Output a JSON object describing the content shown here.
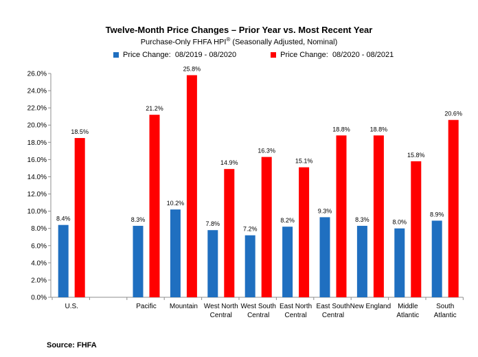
{
  "title": "Twelve-Month Price Changes – Prior Year vs. Most Recent Year",
  "subtitle_main": "Purchase-Only FHFA HPI",
  "subtitle_sup": "®",
  "subtitle_rest": " (Seasonally Adjusted, Nominal)",
  "source": "Source: FHFA",
  "colors": {
    "series1": "#1f6fc0",
    "series2": "#ff0000",
    "axis": "#8c8c8c"
  },
  "chart_data": {
    "type": "bar",
    "title": "Twelve-Month Price Changes – Prior Year vs. Most Recent Year",
    "ylim": [
      0,
      26
    ],
    "ytick_step": 2,
    "ytick_labels": [
      "0.0%",
      "2.0%",
      "4.0%",
      "6.0%",
      "8.0%",
      "10.0%",
      "12.0%",
      "14.0%",
      "16.0%",
      "18.0%",
      "20.0%",
      "22.0%",
      "24.0%",
      "26.0%"
    ],
    "legend_position": "top",
    "grid": false,
    "categories": [
      [
        "U.S."
      ],
      [
        ""
      ],
      [
        "Pacific"
      ],
      [
        "Mountain"
      ],
      [
        "West North",
        "Central"
      ],
      [
        "West South",
        "Central"
      ],
      [
        "East North",
        "Central"
      ],
      [
        "East South",
        "Central"
      ],
      [
        "New England"
      ],
      [
        "Middle",
        "Atlantic"
      ],
      [
        "South",
        "Atlantic"
      ]
    ],
    "series": [
      {
        "name": "Price Change:  08/2019 - 08/2020",
        "values": [
          8.4,
          null,
          8.3,
          10.2,
          7.8,
          7.2,
          8.2,
          9.3,
          8.3,
          8.0,
          8.9
        ],
        "labels": [
          "8.4%",
          "",
          "8.3%",
          "10.2%",
          "7.8%",
          "7.2%",
          "8.2%",
          "9.3%",
          "8.3%",
          "8.0%",
          "8.9%"
        ]
      },
      {
        "name": "Price Change:  08/2020 - 08/2021",
        "values": [
          18.5,
          null,
          21.2,
          25.8,
          14.9,
          16.3,
          15.1,
          18.8,
          18.8,
          15.8,
          20.6
        ],
        "labels": [
          "18.5%",
          "",
          "21.2%",
          "25.8%",
          "14.9%",
          "16.3%",
          "15.1%",
          "18.8%",
          "18.8%",
          "15.8%",
          "20.6%"
        ]
      }
    ]
  }
}
